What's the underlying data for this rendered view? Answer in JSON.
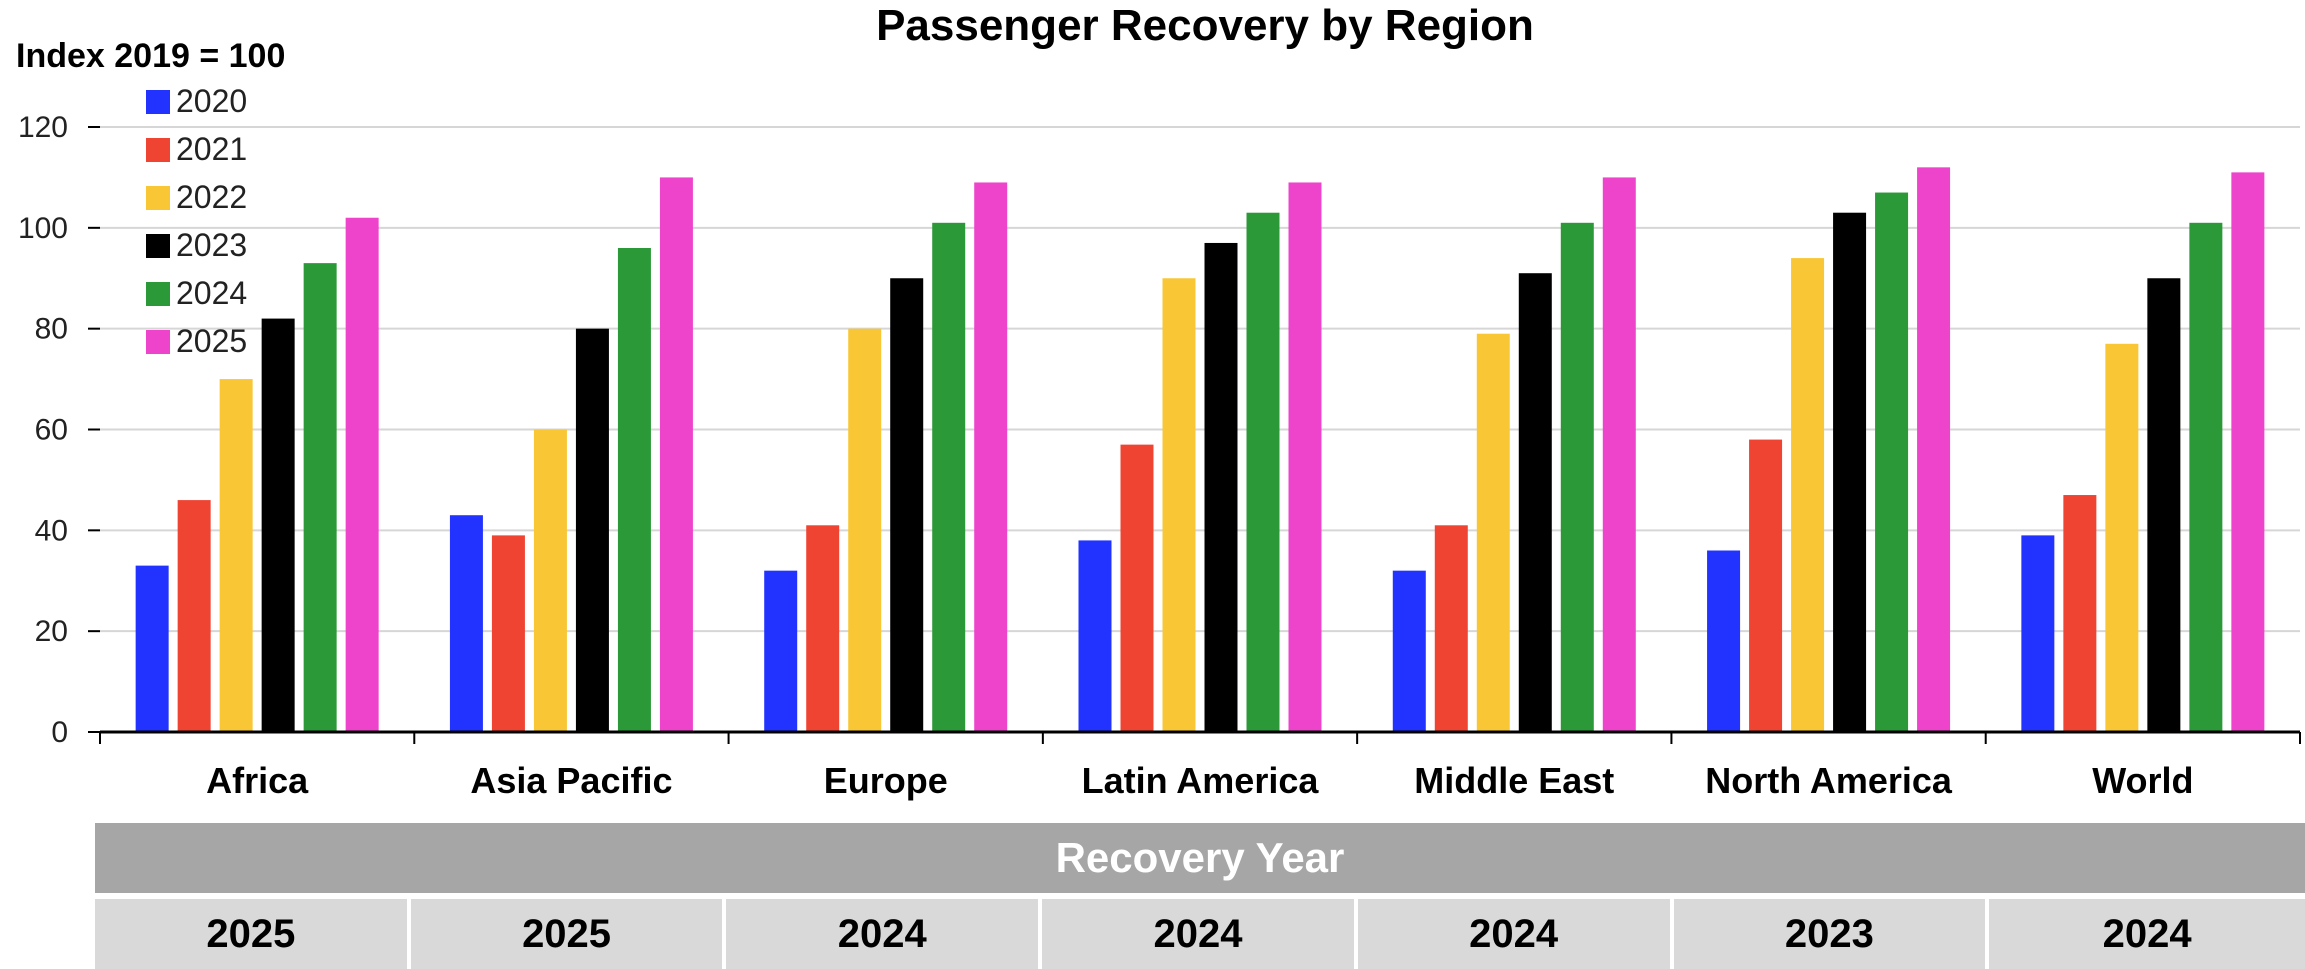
{
  "chart_data": {
    "type": "bar",
    "title": "Passenger Recovery by Region",
    "ylabel": "Index 2019 = 100",
    "ylim": [
      0,
      120
    ],
    "yticks": [
      0,
      20,
      40,
      60,
      80,
      100,
      120
    ],
    "grid": true,
    "legend_position": "top-left",
    "categories": [
      "Africa",
      "Asia Pacific",
      "Europe",
      "Latin America",
      "Middle East",
      "North America",
      "World"
    ],
    "series": [
      {
        "name": "2020",
        "color": "#2233ff",
        "values": [
          33,
          43,
          32,
          38,
          32,
          36,
          39
        ]
      },
      {
        "name": "2021",
        "color": "#f04433",
        "values": [
          46,
          39,
          41,
          57,
          41,
          58,
          47
        ]
      },
      {
        "name": "2022",
        "color": "#f9c735",
        "values": [
          70,
          60,
          80,
          90,
          79,
          94,
          77
        ]
      },
      {
        "name": "2023",
        "color": "#000000",
        "values": [
          82,
          80,
          90,
          97,
          91,
          103,
          90
        ]
      },
      {
        "name": "2024",
        "color": "#2c9939",
        "values": [
          93,
          96,
          101,
          103,
          101,
          107,
          101
        ]
      },
      {
        "name": "2025",
        "color": "#ee44cc",
        "values": [
          102,
          110,
          109,
          109,
          110,
          112,
          111
        ]
      }
    ]
  },
  "table": {
    "header": "Recovery Year",
    "values": [
      "2025",
      "2025",
      "2024",
      "2024",
      "2024",
      "2023",
      "2024"
    ]
  }
}
